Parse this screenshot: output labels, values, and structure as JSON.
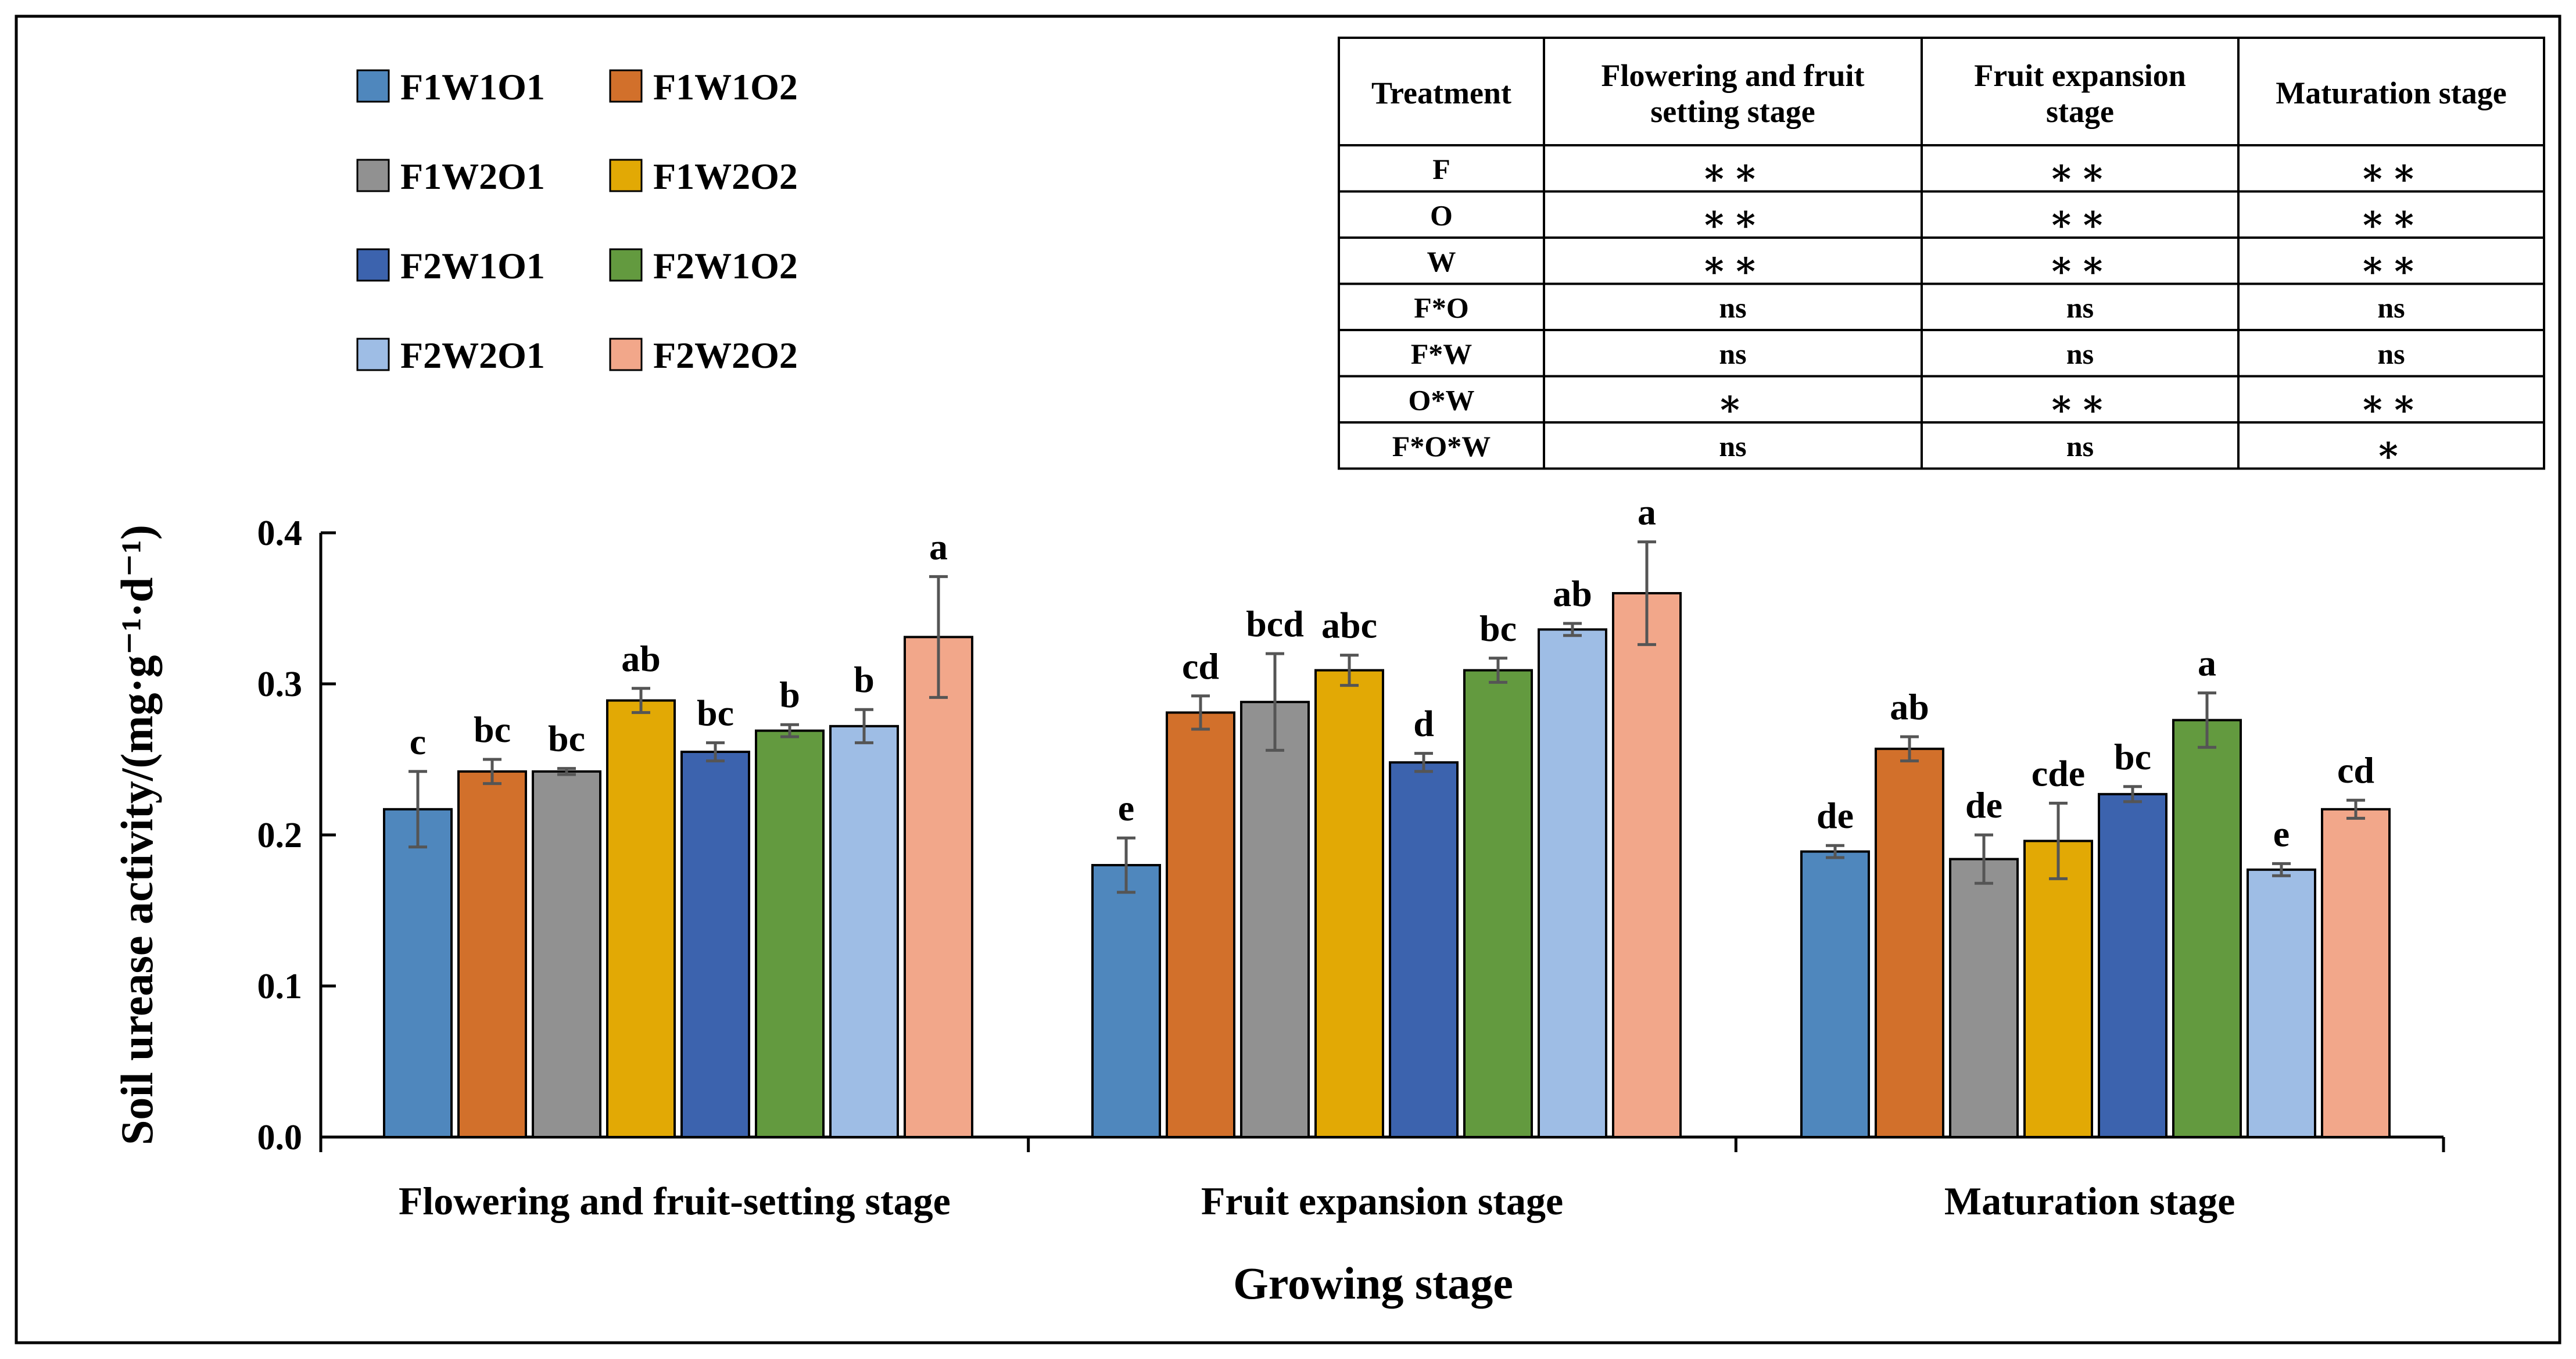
{
  "chart_data": {
    "type": "bar",
    "ylabel": "Soil urease activity/(mg·g⁻¹·d⁻¹)",
    "xlabel": "Growing stage",
    "ylim": [
      0,
      0.4
    ],
    "yticks": [
      "0.0",
      "0.1",
      "0.2",
      "0.3",
      "0.4"
    ],
    "categories": [
      "Flowering and fruit-setting stage",
      "Fruit expansion stage",
      "Maturation stage"
    ],
    "series": [
      {
        "name": "F1W1O1",
        "color": "#4f87bd",
        "values": [
          0.217,
          0.18,
          0.189
        ],
        "errors": [
          0.025,
          0.018,
          0.004
        ],
        "letters": [
          "c",
          "e",
          "de"
        ]
      },
      {
        "name": "F1W1O2",
        "color": "#d2702b",
        "values": [
          0.242,
          0.281,
          0.257
        ],
        "errors": [
          0.008,
          0.011,
          0.008
        ],
        "letters": [
          "bc",
          "cd",
          "ab"
        ]
      },
      {
        "name": "F1W2O1",
        "color": "#919191",
        "values": [
          0.242,
          0.288,
          0.184
        ],
        "errors": [
          0.002,
          0.032,
          0.016
        ],
        "letters": [
          "bc",
          "bcd",
          "de"
        ]
      },
      {
        "name": "F1W2O2",
        "color": "#e2a905",
        "values": [
          0.289,
          0.309,
          0.196
        ],
        "errors": [
          0.008,
          0.01,
          0.025
        ],
        "letters": [
          "ab",
          "abc",
          "cde"
        ]
      },
      {
        "name": "F2W1O1",
        "color": "#3c63ae",
        "values": [
          0.255,
          0.248,
          0.227
        ],
        "errors": [
          0.006,
          0.006,
          0.005
        ],
        "letters": [
          "bc",
          "d",
          "bc"
        ]
      },
      {
        "name": "F2W1O2",
        "color": "#639a3f",
        "values": [
          0.269,
          0.309,
          0.276
        ],
        "errors": [
          0.004,
          0.008,
          0.018
        ],
        "letters": [
          "b",
          "bc",
          "a"
        ]
      },
      {
        "name": "F2W2O1",
        "color": "#9ebde5",
        "values": [
          0.272,
          0.336,
          0.177
        ],
        "errors": [
          0.011,
          0.004,
          0.004
        ],
        "letters": [
          "b",
          "ab",
          "e"
        ]
      },
      {
        "name": "F2W2O2",
        "color": "#f2a78a",
        "values": [
          0.331,
          0.36,
          0.217
        ],
        "errors": [
          0.04,
          0.034,
          0.006
        ],
        "letters": [
          "a",
          "a",
          "cd"
        ]
      }
    ]
  },
  "table": {
    "headers": [
      "Treatment",
      "Flowering and fruit setting stage",
      "Fruit expansion stage",
      "Maturation stage"
    ],
    "rows": [
      [
        "F",
        "∗∗",
        "∗∗",
        "∗∗"
      ],
      [
        "O",
        "∗∗",
        "∗∗",
        "∗∗"
      ],
      [
        "W",
        "∗∗",
        "∗∗",
        "∗∗"
      ],
      [
        "F*O",
        "ns",
        "ns",
        "ns"
      ],
      [
        "F*W",
        "ns",
        "ns",
        "ns"
      ],
      [
        "O*W",
        "∗",
        "∗∗",
        "∗∗"
      ],
      [
        "F*O*W",
        "ns",
        "ns",
        "∗"
      ]
    ]
  }
}
